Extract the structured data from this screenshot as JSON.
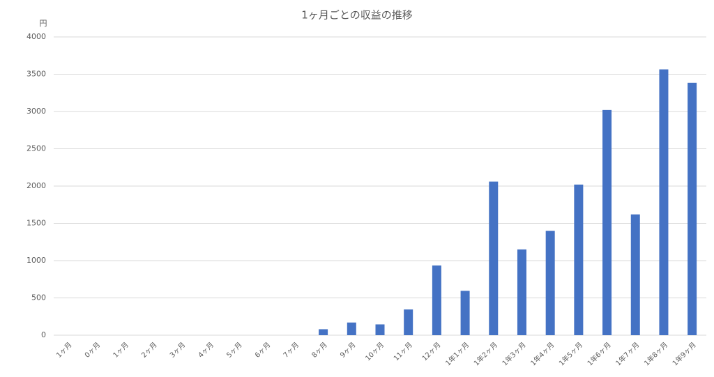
{
  "chart_data": {
    "type": "bar",
    "title": "1ヶ月ごとの収益の推移",
    "y_label": "円",
    "categories": [
      "1ヶ月",
      "0ヶ月",
      "1ヶ月",
      "2ヶ月",
      "3ヶ月",
      "4ヶ月",
      "5ヶ月",
      "6ヶ月",
      "7ヶ月",
      "8ヶ月",
      "9ヶ月",
      "10ヶ月",
      "11ヶ月",
      "12ヶ月",
      "1年1ヶ月",
      "1年2ヶ月",
      "1年3ヶ月",
      "1年4ヶ月",
      "1年5ヶ月",
      "1年6ヶ月",
      "1年7ヶ月",
      "1年8ヶ月",
      "1年9ヶ月"
    ],
    "values": [
      0,
      0,
      0,
      0,
      0,
      0,
      0,
      0,
      0,
      80,
      170,
      145,
      345,
      935,
      595,
      2060,
      1150,
      1400,
      2020,
      3020,
      1620,
      3565,
      3385
    ],
    "color": "#4472c4",
    "ylim": [
      0,
      4000
    ],
    "yticks": [
      0,
      500,
      1000,
      1500,
      2000,
      2500,
      3000,
      3500,
      4000
    ],
    "grid": true
  }
}
